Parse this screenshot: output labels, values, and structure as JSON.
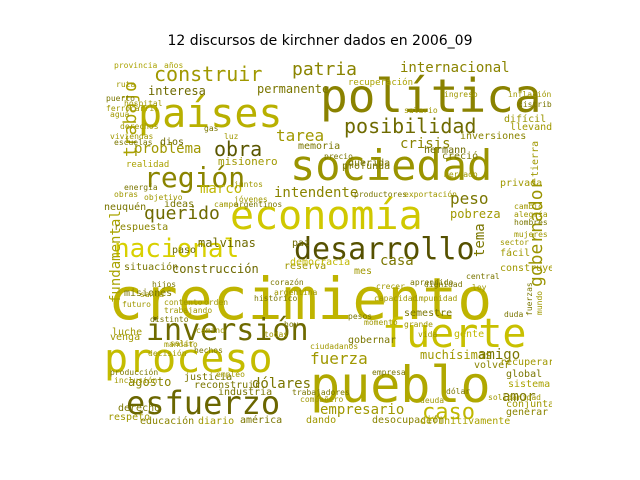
{
  "title": "12 discursos de kirchner dados en 2006_09",
  "words": [
    {
      "text": "crecimiento",
      "color": "#bfb400"
    },
    {
      "text": "política",
      "color": "#8a8200"
    },
    {
      "text": "países",
      "color": "#b8b000"
    },
    {
      "text": "sociedad",
      "color": "#9a9400"
    },
    {
      "text": "economía",
      "color": "#d0c800"
    },
    {
      "text": "pueblo",
      "color": "#b0a800"
    },
    {
      "text": "proceso",
      "color": "#c4bc00"
    },
    {
      "text": "fuerte",
      "color": "#c8c000"
    },
    {
      "text": "desarrollo",
      "color": "#555000"
    },
    {
      "text": "inversión",
      "color": "#6e6a00"
    },
    {
      "text": "esfuerzo",
      "color": "#6a6600"
    },
    {
      "text": "región",
      "color": "#8a8400"
    },
    {
      "text": "nacional",
      "color": "#d8d000"
    },
    {
      "text": "posibilidad",
      "color": "#6e6a00"
    },
    {
      "text": "construir",
      "color": "#a09800"
    },
    {
      "text": "patria",
      "color": "#8a8400"
    },
    {
      "text": "obra",
      "color": "#5a5600"
    },
    {
      "text": "trabajo",
      "color": "#aaa200"
    },
    {
      "text": "querido",
      "color": "#6e6a00"
    },
    {
      "text": "gobernador",
      "color": "#9a9400"
    },
    {
      "text": "internacional",
      "color": "#8a8400"
    },
    {
      "text": "fundamental",
      "color": "#aaa400"
    },
    {
      "text": "caso",
      "color": "#c0b800"
    },
    {
      "text": "dólares",
      "color": "#7a7600"
    },
    {
      "text": "fuerza",
      "color": "#a09800"
    },
    {
      "text": "amor",
      "color": "#7a7600"
    },
    {
      "text": "intendente",
      "color": "#8a8400"
    },
    {
      "text": "permanente",
      "color": "#7a7600"
    },
    {
      "text": "problema",
      "color": "#a09800"
    },
    {
      "text": "tarea",
      "color": "#a09800"
    },
    {
      "text": "crisis",
      "color": "#8a8400"
    },
    {
      "text": "agosto",
      "color": "#8a8400"
    },
    {
      "text": "empresario",
      "color": "#a09800"
    },
    {
      "text": "interesa",
      "color": "#6e6a00"
    },
    {
      "text": "misionero",
      "color": "#a09800"
    },
    {
      "text": "peso",
      "color": "#7a7600"
    },
    {
      "text": "marco",
      "color": "#c0b800"
    },
    {
      "text": "casa",
      "color": "#7a7600"
    },
    {
      "text": "construcción",
      "color": "#6e6a00"
    },
    {
      "text": "muchísimas",
      "color": "#a09800"
    },
    {
      "text": "amigo",
      "color": "#7a7600"
    },
    {
      "text": "malvinas",
      "color": "#6e6a00"
    },
    {
      "text": "tema",
      "color": "#7a7600"
    },
    {
      "text": "pobreza",
      "color": "#a09800"
    },
    {
      "text": "hermann",
      "color": "#6e6a00"
    },
    {
      "text": "inversiones",
      "color": "#8a8400"
    },
    {
      "text": "recuperación",
      "color": "#aaa200"
    },
    {
      "text": "provincia",
      "color": "#aaa200"
    },
    {
      "text": "años",
      "color": "#aaa200"
    },
    {
      "text": "difícil",
      "color": "#9a9400"
    },
    {
      "text": "dios",
      "color": "#6e6a00"
    },
    {
      "text": "realidad",
      "color": "#aaa200"
    },
    {
      "text": "neuquén",
      "color": "#7a7600"
    },
    {
      "text": "ideas",
      "color": "#7a7600"
    },
    {
      "text": "respuesta",
      "color": "#8a8400"
    },
    {
      "text": "situación",
      "color": "#7a7600"
    },
    {
      "text": "misiones",
      "color": "#7a7600"
    },
    {
      "text": "educación",
      "color": "#8a8400"
    },
    {
      "text": "diario",
      "color": "#a09800"
    },
    {
      "text": "américa",
      "color": "#7a7600"
    },
    {
      "text": "dando",
      "color": "#a09800"
    },
    {
      "text": "desocupación",
      "color": "#8a8400"
    },
    {
      "text": "definitivamente",
      "color": "#aaa200"
    },
    {
      "text": "global",
      "color": "#7a7600"
    },
    {
      "text": "sistema",
      "color": "#aaa200"
    },
    {
      "text": "generar",
      "color": "#8a8400"
    },
    {
      "text": "conjunta",
      "color": "#a09800"
    },
    {
      "text": "semestre",
      "color": "#7a7600"
    },
    {
      "text": "volver",
      "color": "#8a8400"
    },
    {
      "text": "luche",
      "color": "#a09800"
    },
    {
      "text": "venga",
      "color": "#a09800"
    },
    {
      "text": "justicia",
      "color": "#7a7600"
    },
    {
      "text": "derecho",
      "color": "#7a7600"
    },
    {
      "text": "reconstruir",
      "color": "#7a7600"
    },
    {
      "text": "industria",
      "color": "#7a7600"
    },
    {
      "text": "respeto",
      "color": "#a09800"
    },
    {
      "text": "gente",
      "color": "#c0b800"
    },
    {
      "text": "fácil",
      "color": "#a09800"
    },
    {
      "text": "privada",
      "color": "#a09800"
    },
    {
      "text": "construyendo",
      "color": "#a09800"
    },
    {
      "text": "memoria",
      "color": "#7a7600"
    },
    {
      "text": "profunda",
      "color": "#7a7600"
    },
    {
      "text": "querida",
      "color": "#7a7600"
    },
    {
      "text": "creció",
      "color": "#7a7600"
    },
    {
      "text": "paso",
      "color": "#6e6a00"
    },
    {
      "text": "paz",
      "color": "#6e6a00"
    },
    {
      "text": "reserva",
      "color": "#a09800"
    },
    {
      "text": "democracia",
      "color": "#c0b800"
    },
    {
      "text": "mes",
      "color": "#a09800"
    },
    {
      "text": "gobernar",
      "color": "#7a7600"
    },
    {
      "text": "recuperar",
      "color": "#a09800"
    },
    {
      "text": "tierra",
      "color": "#a09800"
    },
    {
      "text": "llevando",
      "color": "#a09800"
    },
    {
      "text": "derechos",
      "color": "#a09800"
    },
    {
      "text": "camino",
      "color": "#a09800"
    },
    {
      "text": "hechos",
      "color": "#7a7600"
    },
    {
      "text": "salir",
      "color": "#a09800"
    },
    {
      "text": "mandato",
      "color": "#a09800"
    },
    {
      "text": "decisión",
      "color": "#a09800"
    },
    {
      "text": "contento",
      "color": "#a09800"
    },
    {
      "text": "trabajando",
      "color": "#a09800"
    },
    {
      "text": "distinto",
      "color": "#7a7600"
    },
    {
      "text": "argentina",
      "color": "#a09800"
    },
    {
      "text": "corazón",
      "color": "#7a7600"
    },
    {
      "text": "histórico",
      "color": "#7a7600"
    },
    {
      "text": "capacidad",
      "color": "#a09800"
    },
    {
      "text": "impunidad",
      "color": "#a09800"
    },
    {
      "text": "hijos",
      "color": "#7a7600"
    },
    {
      "text": "santa",
      "color": "#a09800"
    },
    {
      "text": "futuro",
      "color": "#a09800"
    },
    {
      "text": "aprendido",
      "color": "#7a7600"
    },
    {
      "text": "crecer",
      "color": "#a09800"
    },
    {
      "text": "dignidad",
      "color": "#7a7600"
    },
    {
      "text": "orden",
      "color": "#a09800"
    },
    {
      "text": "producción",
      "color": "#7a7600"
    },
    {
      "text": "inclusión",
      "color": "#a09800"
    },
    {
      "text": "empleo",
      "color": "#a09800"
    },
    {
      "text": "trabajadores",
      "color": "#7a7600"
    },
    {
      "text": "compañero",
      "color": "#a09800"
    },
    {
      "text": "ciudadanos",
      "color": "#a09800"
    },
    {
      "text": "empresa",
      "color": "#7a7600"
    },
    {
      "text": "deuda",
      "color": "#a09800"
    },
    {
      "text": "dólar",
      "color": "#7a7600"
    },
    {
      "text": "solidaridad",
      "color": "#a09800"
    },
    {
      "text": "fuerzas",
      "color": "#7a7600"
    },
    {
      "text": "mundo",
      "color": "#a09800"
    },
    {
      "text": "duda",
      "color": "#7a7600"
    },
    {
      "text": "cambio",
      "color": "#a09800"
    },
    {
      "text": "alegría",
      "color": "#a09800"
    },
    {
      "text": "hombres",
      "color": "#7a7600"
    },
    {
      "text": "mujeres",
      "color": "#a09800"
    },
    {
      "text": "sector",
      "color": "#a09800"
    },
    {
      "text": "central",
      "color": "#7a7600"
    },
    {
      "text": "ley",
      "color": "#a09800"
    },
    {
      "text": "grande",
      "color": "#a09800"
    },
    {
      "text": "vida",
      "color": "#a09800"
    },
    {
      "text": "pesos",
      "color": "#7a7600"
    },
    {
      "text": "momento",
      "color": "#a09800"
    },
    {
      "text": "hoy",
      "color": "#7a7600"
    },
    {
      "text": "todas",
      "color": "#a09800"
    },
    {
      "text": "juntos",
      "color": "#a09800"
    },
    {
      "text": "jóvenes",
      "color": "#a09800"
    },
    {
      "text": "argentinos",
      "color": "#7a7600"
    },
    {
      "text": "objetivo",
      "color": "#a09800"
    },
    {
      "text": "energía",
      "color": "#7a7600"
    },
    {
      "text": "obras",
      "color": "#a09800"
    },
    {
      "text": "viviendas",
      "color": "#a09800"
    },
    {
      "text": "escuelas",
      "color": "#7a7600"
    },
    {
      "text": "hospital",
      "color": "#a09800"
    },
    {
      "text": "ruta",
      "color": "#a09800"
    },
    {
      "text": "puerto",
      "color": "#7a7600"
    },
    {
      "text": "ferrocarril",
      "color": "#a09800"
    },
    {
      "text": "agua",
      "color": "#a09800"
    },
    {
      "text": "gas",
      "color": "#7a7600"
    },
    {
      "text": "luz",
      "color": "#a09800"
    },
    {
      "text": "campo",
      "color": "#a09800"
    },
    {
      "text": "productores",
      "color": "#7a7600"
    },
    {
      "text": "exportación",
      "color": "#a09800"
    },
    {
      "text": "mercado",
      "color": "#a09800"
    },
    {
      "text": "precio",
      "color": "#7a7600"
    },
    {
      "text": "salario",
      "color": "#a09800"
    },
    {
      "text": "inflación",
      "color": "#a09800"
    },
    {
      "text": "distribución",
      "color": "#7a7600"
    },
    {
      "text": "ingreso",
      "color": "#a09800"
    },
    {
      "text": "equidad",
      "color": "#a09800"
    },
    {
      "text": "seguridad",
      "color": "#7a7600"
    },
    {
      "text": "servicio",
      "color": "#a09800"
    }
  ]
}
